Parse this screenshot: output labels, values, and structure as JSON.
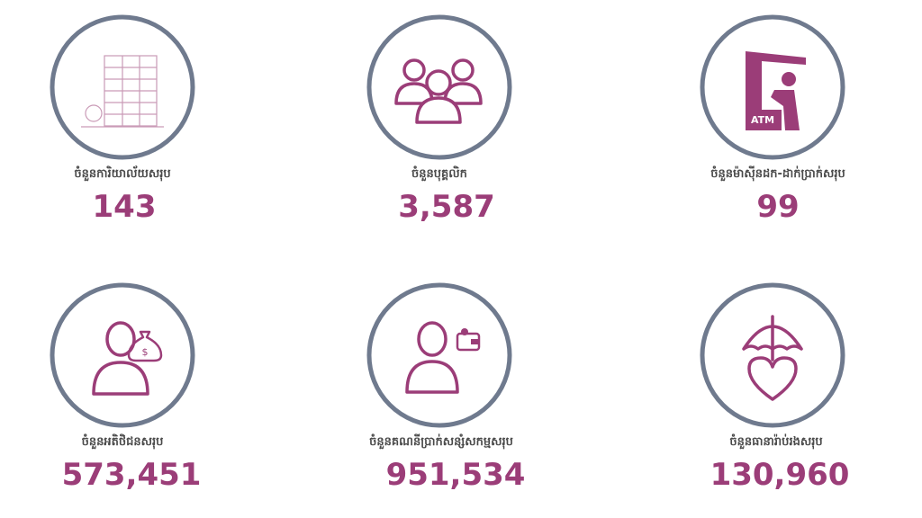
{
  "items": [
    {
      "label": "ចំនួនការិយាល័យសរុប",
      "value": "143"
    },
    {
      "label": "ចំនួនបុគ្គលិក",
      "value": "3,587"
    },
    {
      "label": "ចំនួនម៉ាស៊ីនដក-ដាក់ប្រាក់សរុប",
      "value": "99",
      "icon_text": "ATM"
    },
    {
      "label": "ចំនួនអតិថិជនសរុប",
      "value": "573,451"
    },
    {
      "label": "ចំនួនគណនីប្រាក់សន្សំសកម្មសរុប",
      "value": "951,534"
    },
    {
      "label": "ចំនួនធានារ៉ាប់រងសរុប",
      "value": "130,960"
    }
  ]
}
